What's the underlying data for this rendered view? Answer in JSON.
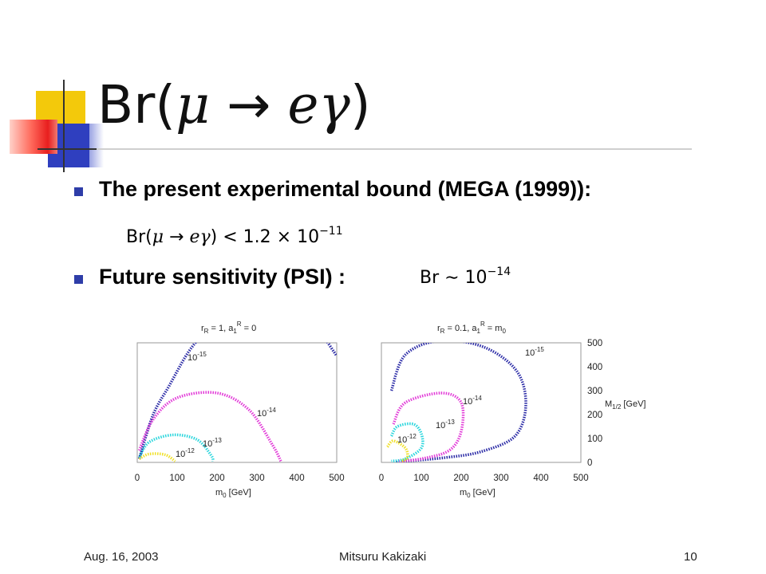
{
  "title": {
    "prefix": "Br(",
    "mu": "μ",
    "arrow": "→",
    "e": "e",
    "gamma": "γ",
    "suffix": ")"
  },
  "bullets": [
    {
      "text": "The present experimental bound (MEGA (1999)):"
    },
    {
      "text": "Future sensitivity (PSI) :"
    }
  ],
  "equations": {
    "bound": {
      "prefix": "Br(",
      "mu": "μ",
      "arrow": "→",
      "e": "e",
      "gamma": "γ",
      "rel": ") < 1.2 × 10",
      "exp": "−11"
    },
    "future": {
      "prefix": "Br ∼ 10",
      "exp": "−14"
    }
  },
  "chart_data": [
    {
      "type": "line",
      "title": "r_R = 1, a_1^R = 0",
      "xlabel": "m0 [GeV]",
      "xticks": [
        "0",
        "100",
        "200",
        "300",
        "400",
        "500"
      ],
      "xlim": [
        0,
        500
      ],
      "ylim": [
        0,
        500
      ],
      "series": [
        {
          "name": "10^-15",
          "color": "#2a2aa6",
          "style": "dotted",
          "x": [
            5,
            40,
            80,
            120,
            150,
            170
          ],
          "y": [
            15,
            200,
            320,
            440,
            510,
            550
          ]
        },
        {
          "name": "10^-15",
          "color": "#2a2aa6",
          "style": "dotted",
          "x": [
            470,
            500
          ],
          "y": [
            520,
            445
          ]
        },
        {
          "name": "10^-14",
          "color": "#e23ad8",
          "style": "dotted",
          "x": [
            5,
            40,
            100,
            200,
            280,
            340,
            360
          ],
          "y": [
            50,
            180,
            270,
            290,
            220,
            70,
            5
          ]
        },
        {
          "name": "10^-13",
          "color": "#2bd6dd",
          "style": "dotted",
          "x": [
            5,
            30,
            90,
            150,
            185,
            190
          ],
          "y": [
            20,
            85,
            115,
            95,
            30,
            5
          ]
        },
        {
          "name": "10^-12",
          "color": "#f0e029",
          "style": "dotted",
          "x": [
            5,
            30,
            70,
            95
          ],
          "y": [
            15,
            35,
            32,
            5
          ]
        }
      ]
    },
    {
      "type": "line",
      "title": "r_R = 0.1, a_1^R = m_0",
      "xlabel": "m0 [GeV]",
      "ylabel": "M1/2 [GeV]",
      "xticks": [
        "0",
        "100",
        "200",
        "300",
        "400",
        "500"
      ],
      "yticks": [
        "0",
        "100",
        "200",
        "300",
        "400",
        "500"
      ],
      "xlim": [
        0,
        500
      ],
      "ylim": [
        0,
        500
      ],
      "series": [
        {
          "name": "10^-15",
          "color": "#2a2aa6",
          "style": "dotted",
          "x": [
            25,
            60,
            150,
            260,
            340,
            362,
            335,
            250,
            160,
            60,
            35
          ],
          "y": [
            300,
            450,
            510,
            480,
            380,
            240,
            110,
            45,
            20,
            5,
            0
          ]
        },
        {
          "name": "10^-14",
          "color": "#e23ad8",
          "style": "dotted",
          "x": [
            30,
            60,
            150,
            200,
            200,
            170,
            100,
            40
          ],
          "y": [
            160,
            250,
            290,
            250,
            130,
            50,
            15,
            5
          ]
        },
        {
          "name": "10^-13",
          "color": "#2bd6dd",
          "style": "dotted",
          "x": [
            25,
            40,
            80,
            100,
            100,
            60,
            25
          ],
          "y": [
            110,
            150,
            160,
            120,
            60,
            15,
            5
          ]
        },
        {
          "name": "10^-12",
          "color": "#f0e029",
          "style": "dotted",
          "x": [
            15,
            30,
            60,
            65,
            50
          ],
          "y": [
            65,
            90,
            60,
            20,
            5
          ]
        }
      ]
    }
  ],
  "footer": {
    "date": "Aug. 16, 2003",
    "author": "Mitsuru Kakizaki",
    "page": "10"
  }
}
